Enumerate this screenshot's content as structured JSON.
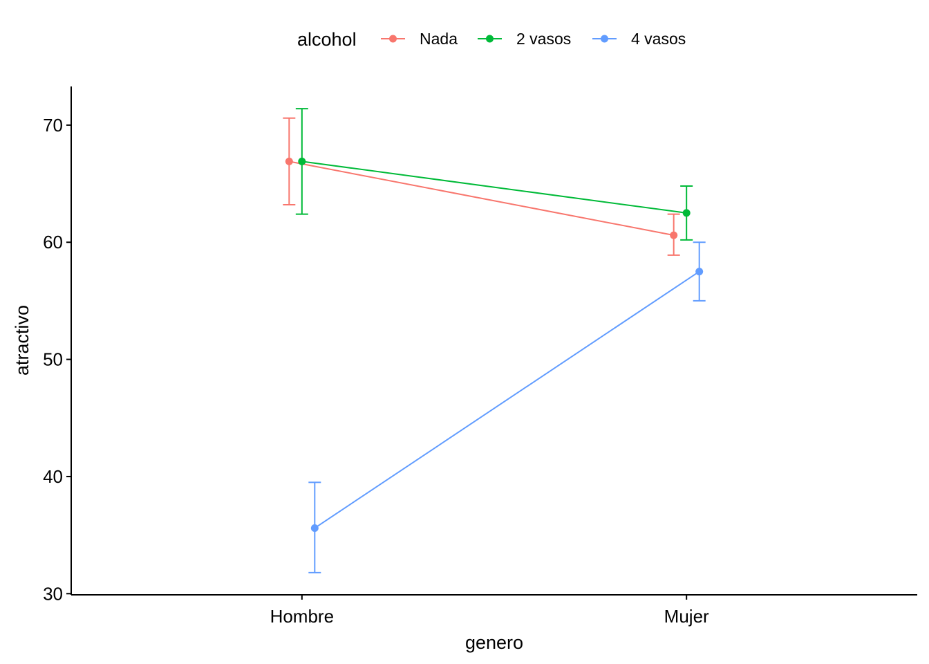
{
  "chart_data": {
    "type": "line",
    "title": "",
    "xlabel": "genero",
    "ylabel": "atractivo",
    "categories": [
      "Hombre",
      "Mujer"
    ],
    "ylim": [
      29.9,
      73.3
    ],
    "yticks": [
      30,
      40,
      50,
      60,
      70
    ],
    "grid": false,
    "legend": {
      "title": "alcohol",
      "position": "top"
    },
    "error_bars": true,
    "series": [
      {
        "name": "Nada",
        "color": "#F8766D",
        "values": [
          66.9,
          60.6
        ],
        "lower": [
          63.2,
          58.9
        ],
        "upper": [
          70.6,
          62.4
        ]
      },
      {
        "name": "2 vasos",
        "color": "#00BA38",
        "values": [
          66.9,
          62.5
        ],
        "lower": [
          62.4,
          60.2
        ],
        "upper": [
          71.4,
          64.8
        ]
      },
      {
        "name": "4 vasos",
        "color": "#619CFF",
        "values": [
          35.6,
          57.5
        ],
        "lower": [
          31.8,
          55.0
        ],
        "upper": [
          39.5,
          60.0
        ]
      }
    ]
  }
}
